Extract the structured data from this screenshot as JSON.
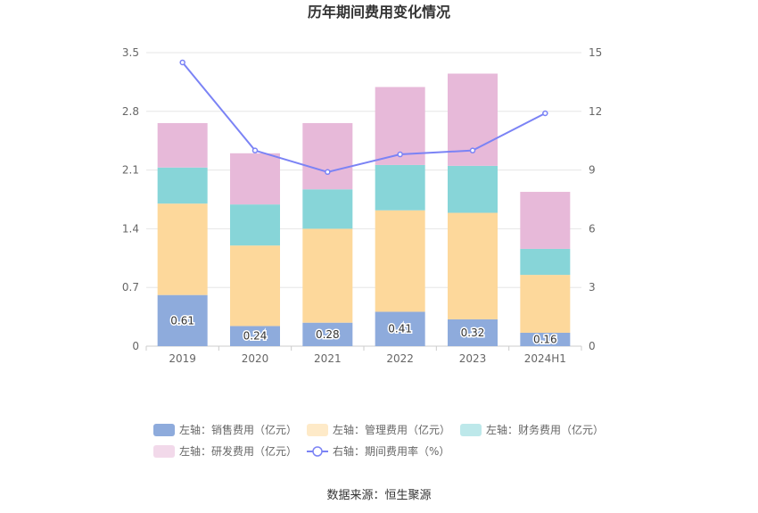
{
  "chart_data": {
    "type": "bar",
    "stacked": true,
    "title": "历年期间费用变化情况",
    "categories": [
      "2019",
      "2020",
      "2021",
      "2022",
      "2023",
      "2024H1"
    ],
    "ylim_left": [
      0,
      3.5
    ],
    "yticks_left": [
      "0",
      "0.7",
      "1.4",
      "2.1",
      "2.8",
      "3.5"
    ],
    "ylim_right": [
      0,
      15
    ],
    "yticks_right": [
      "0",
      "3",
      "6",
      "9",
      "12",
      "15"
    ],
    "grid": true,
    "legend_position": "bottom",
    "series": [
      {
        "name": "左轴：销售费用（亿元）",
        "axis": "left",
        "kind": "bar",
        "color": "#8eabdc",
        "values": [
          0.61,
          0.24,
          0.28,
          0.41,
          0.32,
          0.16
        ],
        "labels": [
          "0.61",
          "0.24",
          "0.28",
          "0.41",
          "0.32",
          "0.16"
        ]
      },
      {
        "name": "左轴：管理费用（亿元）",
        "axis": "left",
        "kind": "bar",
        "color": "#fdd89b",
        "values": [
          1.09,
          0.96,
          1.12,
          1.21,
          1.27,
          0.69
        ]
      },
      {
        "name": "左轴：财务费用（亿元）",
        "axis": "left",
        "kind": "bar",
        "color": "#87d5d8",
        "values": [
          0.43,
          0.49,
          0.47,
          0.54,
          0.56,
          0.31
        ]
      },
      {
        "name": "左轴：研发费用（亿元）",
        "axis": "left",
        "kind": "bar",
        "color": "#e7b9d9",
        "values": [
          0.53,
          0.61,
          0.79,
          0.93,
          1.1,
          0.68
        ]
      },
      {
        "name": "右轴：期间费用率（%）",
        "axis": "right",
        "kind": "line",
        "color": "#7b83f5",
        "values": [
          14.5,
          10.0,
          8.9,
          9.8,
          10.0,
          11.9
        ]
      }
    ],
    "source": "数据来源：恒生聚源"
  }
}
